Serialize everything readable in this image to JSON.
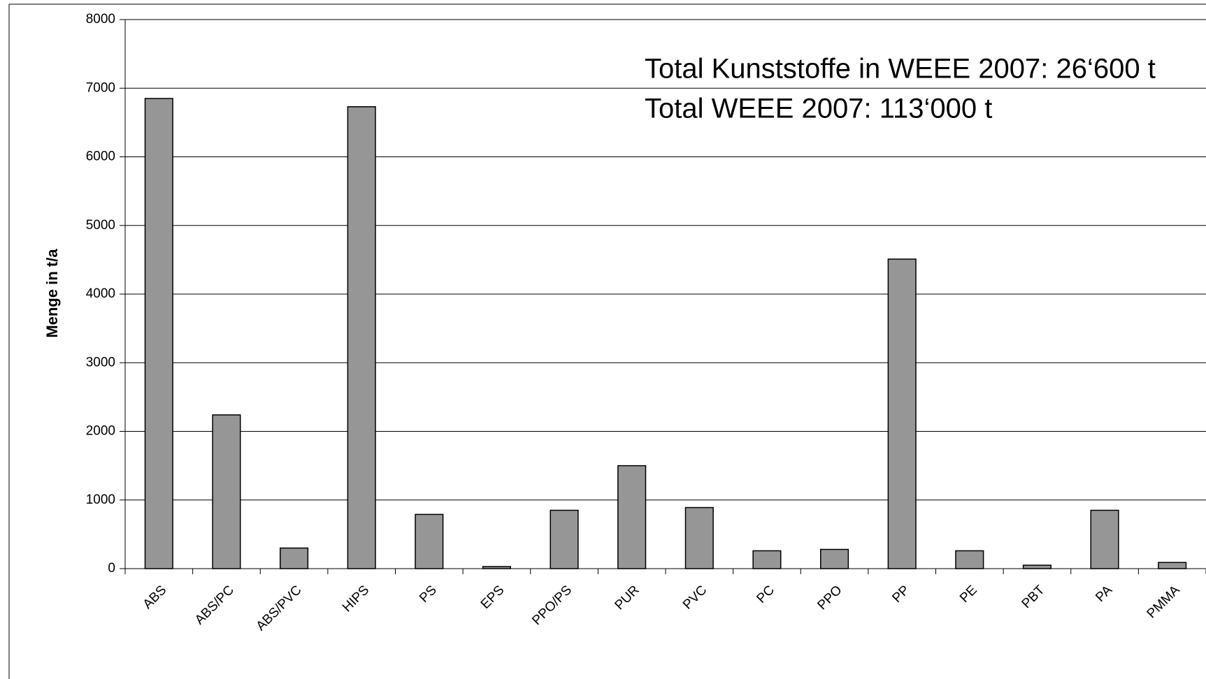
{
  "chart_data": {
    "type": "bar",
    "y_label": "Menge in t/a",
    "annotations": [
      "Total Kunststoffe in WEEE 2007: 26‘600 t",
      "Total WEEE 2007: 113‘000 t"
    ],
    "categories": [
      "ABS",
      "ABS/PC",
      "ABS/PVC",
      "HIPS",
      "PS",
      "EPS",
      "PPO/PS",
      "PUR",
      "PVC",
      "PC",
      "PPO",
      "PP",
      "PE",
      "PBT",
      "PA",
      "PMMA"
    ],
    "values": [
      6850,
      2240,
      300,
      6730,
      790,
      30,
      850,
      1500,
      890,
      260,
      280,
      4510,
      260,
      50,
      850,
      90
    ],
    "color": "#969696",
    "annotation_color": "#f26c0a",
    "ylim": [
      0,
      8000
    ],
    "yticks": [
      0,
      1000,
      2000,
      3000,
      4000,
      5000,
      6000,
      7000,
      8000
    ],
    "grid": true
  }
}
